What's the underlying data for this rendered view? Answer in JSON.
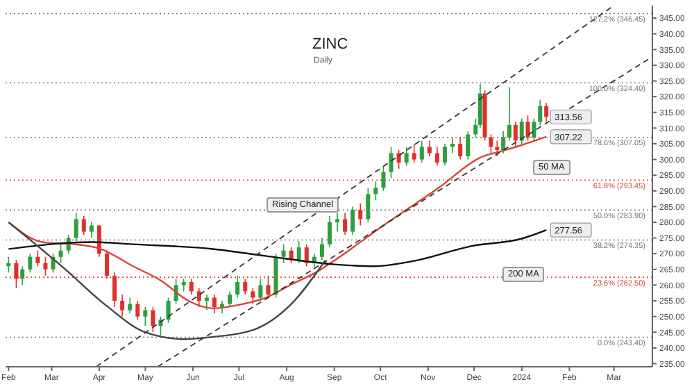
{
  "chart_data": {
    "type": "candlestick",
    "title": "ZINC",
    "subtitle": "Daily",
    "x": [
      "2023-02-01",
      "2023-02-06",
      "2023-02-10",
      "2023-02-15",
      "2023-02-20",
      "2023-02-25",
      "2023-03-02",
      "2023-03-07",
      "2023-03-12",
      "2023-03-17",
      "2023-03-22",
      "2023-03-27",
      "2023-04-01",
      "2023-04-06",
      "2023-04-11",
      "2023-04-16",
      "2023-04-21",
      "2023-04-26",
      "2023-05-01",
      "2023-05-06",
      "2023-05-11",
      "2023-05-16",
      "2023-05-21",
      "2023-05-26",
      "2023-05-31",
      "2023-06-05",
      "2023-06-10",
      "2023-06-15",
      "2023-06-20",
      "2023-06-25",
      "2023-06-30",
      "2023-07-05",
      "2023-07-10",
      "2023-07-15",
      "2023-07-20",
      "2023-07-25",
      "2023-07-30",
      "2023-08-04",
      "2023-08-09",
      "2023-08-14",
      "2023-08-19",
      "2023-08-24",
      "2023-08-29",
      "2023-09-03",
      "2023-09-08",
      "2023-09-13",
      "2023-09-18",
      "2023-09-23",
      "2023-09-28",
      "2023-10-03",
      "2023-10-08",
      "2023-10-13",
      "2023-10-18",
      "2023-10-23",
      "2023-10-28",
      "2023-11-02",
      "2023-11-07",
      "2023-11-12",
      "2023-11-17",
      "2023-11-22",
      "2023-11-27",
      "2023-12-02",
      "2023-12-05",
      "2023-12-08",
      "2023-12-12",
      "2023-12-16",
      "2023-12-20",
      "2023-12-24",
      "2023-12-28",
      "2024-01-01",
      "2024-01-05",
      "2024-01-09",
      "2024-01-13",
      "2024-01-17"
    ],
    "ohlc": [
      [
        266,
        269,
        264,
        267
      ],
      [
        267,
        268,
        259,
        262
      ],
      [
        262,
        266,
        260,
        265
      ],
      [
        265,
        270,
        264,
        269
      ],
      [
        269,
        271,
        266,
        267
      ],
      [
        267,
        269,
        263,
        265
      ],
      [
        265,
        270,
        264,
        269
      ],
      [
        269,
        273,
        267,
        271
      ],
      [
        271,
        276,
        270,
        275
      ],
      [
        275,
        283,
        274,
        281
      ],
      [
        281,
        282,
        276,
        277
      ],
      [
        277,
        280,
        275,
        279
      ],
      [
        279,
        279,
        269,
        270
      ],
      [
        270,
        271,
        262,
        263
      ],
      [
        263,
        264,
        253,
        255
      ],
      [
        255,
        257,
        250,
        252
      ],
      [
        252,
        256,
        251,
        254
      ],
      [
        254,
        255,
        249,
        250
      ],
      [
        250,
        253,
        247,
        252
      ],
      [
        252,
        253,
        245,
        247
      ],
      [
        247,
        250,
        244,
        249
      ],
      [
        249,
        256,
        248,
        255
      ],
      [
        255,
        262,
        254,
        260
      ],
      [
        260,
        262,
        258,
        261
      ],
      [
        261,
        262,
        257,
        258
      ],
      [
        258,
        259,
        253,
        255
      ],
      [
        255,
        257,
        252,
        256
      ],
      [
        256,
        257,
        251,
        253
      ],
      [
        253,
        255,
        251,
        254
      ],
      [
        254,
        258,
        253,
        257
      ],
      [
        257,
        263,
        256,
        261
      ],
      [
        261,
        262,
        257,
        258
      ],
      [
        258,
        259,
        254,
        256
      ],
      [
        256,
        262,
        255,
        260
      ],
      [
        260,
        263,
        256,
        257
      ],
      [
        257,
        270,
        256,
        269
      ],
      [
        269,
        273,
        267,
        271
      ],
      [
        271,
        272,
        267,
        268
      ],
      [
        268,
        274,
        267,
        272
      ],
      [
        272,
        273,
        266,
        267
      ],
      [
        267,
        270,
        265,
        269
      ],
      [
        269,
        275,
        268,
        273
      ],
      [
        273,
        282,
        272,
        280
      ],
      [
        280,
        283,
        277,
        281
      ],
      [
        281,
        283,
        276,
        277
      ],
      [
        277,
        285,
        276,
        284
      ],
      [
        284,
        286,
        279,
        281
      ],
      [
        281,
        291,
        280,
        289
      ],
      [
        289,
        293,
        287,
        291
      ],
      [
        291,
        298,
        290,
        296
      ],
      [
        296,
        304,
        294,
        302
      ],
      [
        302,
        303,
        297,
        299
      ],
      [
        299,
        304,
        298,
        302
      ],
      [
        302,
        305,
        299,
        300
      ],
      [
        300,
        306,
        299,
        304
      ],
      [
        304,
        306,
        301,
        302
      ],
      [
        302,
        304,
        298,
        299
      ],
      [
        299,
        305,
        298,
        304
      ],
      [
        304,
        307,
        302,
        305
      ],
      [
        305,
        307,
        300,
        301
      ],
      [
        301,
        309,
        300,
        308
      ],
      [
        308,
        313,
        307,
        311
      ],
      [
        311,
        324,
        310,
        321
      ],
      [
        321,
        322,
        306,
        307
      ],
      [
        307,
        308,
        302,
        304
      ],
      [
        304,
        306,
        301,
        303
      ],
      [
        303,
        309,
        302,
        307
      ],
      [
        307,
        323,
        306,
        311
      ],
      [
        311,
        312,
        304,
        306
      ],
      [
        306,
        313,
        305,
        312
      ],
      [
        312,
        314,
        306,
        307
      ],
      [
        307,
        313,
        306,
        312
      ],
      [
        312,
        319,
        311,
        317
      ],
      [
        317,
        318,
        312,
        313.56
      ]
    ],
    "colors": [
      "#2e9e3e",
      "#e0302a",
      "#2e9e3e",
      "#2e9e3e",
      "#e0302a",
      "#e0302a",
      "#2e9e3e",
      "#2e9e3e",
      "#2e9e3e",
      "#2e9e3e",
      "#e0302a",
      "#2e9e3e",
      "#e0302a",
      "#e0302a",
      "#e0302a",
      "#e0302a",
      "#2e9e3e",
      "#e0302a",
      "#2e9e3e",
      "#e0302a",
      "#2e9e3e",
      "#2e9e3e",
      "#2e9e3e",
      "#2e9e3e",
      "#e0302a",
      "#e0302a",
      "#2e9e3e",
      "#e0302a",
      "#2e9e3e",
      "#2e9e3e",
      "#2e9e3e",
      "#e0302a",
      "#e0302a",
      "#2e9e3e",
      "#e0302a",
      "#2e9e3e",
      "#2e9e3e",
      "#e0302a",
      "#2e9e3e",
      "#e0302a",
      "#2e9e3e",
      "#2e9e3e",
      "#2e9e3e",
      "#2e9e3e",
      "#e0302a",
      "#2e9e3e",
      "#e0302a",
      "#2e9e3e",
      "#2e9e3e",
      "#2e9e3e",
      "#2e9e3e",
      "#e0302a",
      "#2e9e3e",
      "#e0302a",
      "#2e9e3e",
      "#e0302a",
      "#e0302a",
      "#2e9e3e",
      "#2e9e3e",
      "#e0302a",
      "#2e9e3e",
      "#2e9e3e",
      "#2e9e3e",
      "#e0302a",
      "#e0302a",
      "#e0302a",
      "#2e9e3e",
      "#2e9e3e",
      "#e0302a",
      "#2e9e3e",
      "#e0302a",
      "#2e9e3e",
      "#2e9e3e",
      "#e0302a"
    ],
    "series": [
      {
        "type": "line",
        "color": "#d9443a",
        "x": [
          "2023-02-01",
          "2023-02-23",
          "2023-03-20",
          "2023-04-01",
          "2023-04-23",
          "2023-05-11",
          "2023-05-29",
          "2023-06-14",
          "2023-07-01",
          "2023-07-18",
          "2023-08-04",
          "2023-08-22",
          "2023-09-01",
          "2023-10-03",
          "2023-11-08",
          "2023-12-05",
          "2023-12-20",
          "2024-01-01",
          "2024-01-17"
        ],
        "values": [
          280,
          273.7,
          272.8,
          271.7,
          266,
          261.5,
          255,
          252.6,
          253.7,
          255.9,
          260.2,
          264.6,
          267.8,
          279,
          291,
          300.6,
          302.8,
          304.6,
          307.22
        ]
      },
      {
        "type": "line",
        "color": "#111111",
        "x": [
          "2023-02-01",
          "2023-03-27",
          "2023-04-23",
          "2023-06-14",
          "2023-07-18",
          "2023-09-01",
          "2023-09-27",
          "2023-10-23",
          "2023-11-29",
          "2024-01-01",
          "2024-01-17"
        ],
        "values": [
          271.5,
          273.7,
          273,
          271.5,
          269.3,
          266.6,
          266,
          267.7,
          272.4,
          274.8,
          277.56
        ]
      },
      {
        "type": "line",
        "color": "#444444",
        "x": [
          "2023-02-01",
          "2023-03-10",
          "2023-04-05",
          "2023-05-01",
          "2023-05-27",
          "2023-06-14",
          "2023-07-10",
          "2023-08-04",
          "2023-08-26"
        ],
        "values": [
          280,
          265,
          253.7,
          245,
          242.8,
          243.5,
          245.7,
          254,
          267.8
        ]
      },
      {
        "type": "line",
        "color": "#333333",
        "line_style": "dashed",
        "x": [
          "2023-03-30",
          "2024-03-01"
        ],
        "values": [
          234,
          349
        ]
      },
      {
        "type": "line",
        "color": "#333333",
        "line_style": "dashed",
        "x": [
          "2023-05-09",
          "2024-03-25"
        ],
        "values": [
          234,
          332.4
        ]
      }
    ],
    "xlim": [
      "2023-01-30",
      "2024-03-26"
    ],
    "xticks": [
      {
        "value": "2023-02-01",
        "label": "Feb"
      },
      {
        "value": "2023-03-01",
        "label": "Mar"
      },
      {
        "value": "2023-04-01",
        "label": "Apr"
      },
      {
        "value": "2023-05-01",
        "label": "May"
      },
      {
        "value": "2023-06-01",
        "label": "Jun"
      },
      {
        "value": "2023-07-01",
        "label": "Jul"
      },
      {
        "value": "2023-08-01",
        "label": "Aug"
      },
      {
        "value": "2023-09-01",
        "label": "Sep"
      },
      {
        "value": "2023-10-01",
        "label": "Oct"
      },
      {
        "value": "2023-11-01",
        "label": "Nov"
      },
      {
        "value": "2023-12-01",
        "label": "Dec"
      },
      {
        "value": "2024-01-01",
        "label": "2024"
      },
      {
        "value": "2024-02-01",
        "label": "Feb"
      },
      {
        "value": "2024-03-01",
        "label": "Mar"
      }
    ],
    "ylim": [
      234,
      349
    ],
    "yticks": [
      {
        "value": 235,
        "label": "235.00"
      },
      {
        "value": 240,
        "label": "240.00"
      },
      {
        "value": 245,
        "label": "245.00"
      },
      {
        "value": 250,
        "label": "250.00"
      },
      {
        "value": 255,
        "label": "255.00"
      },
      {
        "value": 260,
        "label": "260.00"
      },
      {
        "value": 265,
        "label": "265.00"
      },
      {
        "value": 270,
        "label": "270.00"
      },
      {
        "value": 275,
        "label": "275.00"
      },
      {
        "value": 280,
        "label": "280.00"
      },
      {
        "value": 285,
        "label": "285.00"
      },
      {
        "value": 290,
        "label": "290.00"
      },
      {
        "value": 295,
        "label": "295.00"
      },
      {
        "value": 300,
        "label": "300.00"
      },
      {
        "value": 305,
        "label": "305.00"
      },
      {
        "value": 310,
        "label": "310.00"
      },
      {
        "value": 315,
        "label": "315.00"
      },
      {
        "value": 320,
        "label": "320.00"
      },
      {
        "value": 325,
        "label": "325.00"
      },
      {
        "value": 330,
        "label": "330.00"
      },
      {
        "value": 335,
        "label": "335.00"
      },
      {
        "value": 340,
        "label": "340.00"
      },
      {
        "value": 345,
        "label": "345.00"
      }
    ],
    "ref_lines": [
      {
        "axis": "y",
        "value": 243.4,
        "label": "0.0% (243.40)",
        "color": "#777777",
        "line_style": "dotted"
      },
      {
        "axis": "y",
        "value": 262.5,
        "label": "23.6% (262.50)",
        "color": "#d9443a",
        "line_style": "dotted"
      },
      {
        "axis": "y",
        "value": 274.35,
        "label": "38.2% (274.35)",
        "color": "#777777",
        "line_style": "dotted"
      },
      {
        "axis": "y",
        "value": 283.9,
        "label": "50.0% (283.90)",
        "color": "#777777",
        "line_style": "dotted"
      },
      {
        "axis": "y",
        "value": 293.45,
        "label": "61.8% (293.45)",
        "color": "#d9443a",
        "line_style": "dotted"
      },
      {
        "axis": "y",
        "value": 307.05,
        "label": "78.6% (307.05)",
        "color": "#777777",
        "line_style": "dotted"
      },
      {
        "axis": "y",
        "value": 324.4,
        "label": "100.0% (324.40)",
        "color": "#777777",
        "line_style": "dotted"
      },
      {
        "axis": "y",
        "value": 346.45,
        "label": "127.2% (346.45)",
        "color": "#777777",
        "line_style": "dotted"
      }
    ],
    "annotations": [
      "Rising Channel",
      "50 MA",
      "200 MA",
      {
        "text": "313.56",
        "x": "2024-01-17",
        "y": 313.56
      },
      {
        "text": "307.22",
        "x": "2024-01-17",
        "y": 307.22
      },
      {
        "text": "277.56",
        "x": "2024-01-17",
        "y": 277.56
      }
    ],
    "grid": false
  }
}
